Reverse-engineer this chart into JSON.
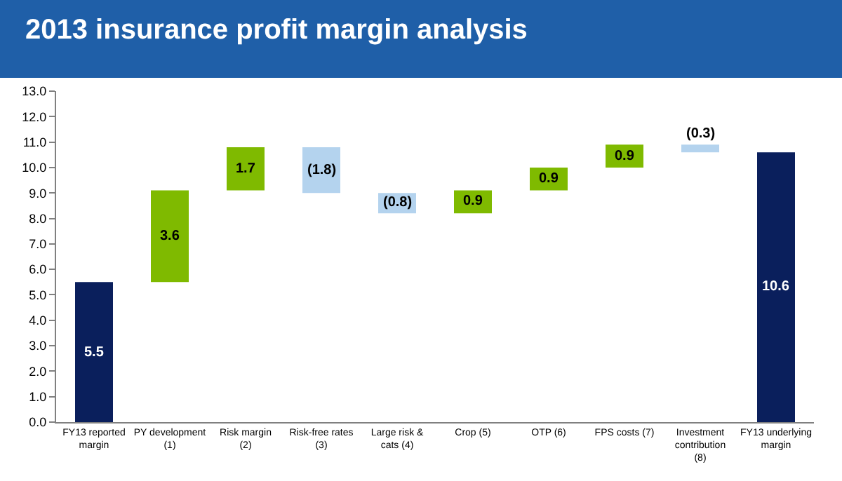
{
  "chart_data": {
    "type": "bar",
    "title": "2013 insurance profit margin analysis",
    "categories": [
      "FY13 reported margin",
      "PY development (1)",
      "Risk margin  (2)",
      "Risk-free rates (3)",
      "Large risk & cats (4)",
      "Crop (5)",
      "OTP (6)",
      "FPS costs (7)",
      "Investment contribution (8)",
      "FY13 underlying margin"
    ],
    "values": [
      5.5,
      3.6,
      1.7,
      -1.8,
      -0.8,
      0.9,
      0.9,
      0.9,
      -0.3,
      10.6
    ],
    "base": [
      0,
      5.5,
      9.1,
      10.8,
      9.0,
      8.2,
      9.1,
      10.0,
      10.9,
      0
    ],
    "colors": [
      "#0a1f5c",
      "#7fba00",
      "#7fba00",
      "#b4d3ee",
      "#b4d3ee",
      "#7fba00",
      "#7fba00",
      "#7fba00",
      "#b4d3ee",
      "#0a1f5c"
    ],
    "value_labels": [
      "5.5",
      "3.6",
      "1.7",
      "(1.8)",
      "(0.8)",
      "0.9",
      "0.9",
      "0.9",
      "(0.3)",
      "10.6"
    ],
    "ylim": [
      0,
      13
    ],
    "yticks": [
      {
        "value": 0,
        "label": "0.0"
      },
      {
        "value": 1,
        "label": "1.0"
      },
      {
        "value": 2,
        "label": "2.0"
      },
      {
        "value": 3,
        "label": "3.0"
      },
      {
        "value": 4,
        "label": "4.0"
      },
      {
        "value": 5,
        "label": "5.0"
      },
      {
        "value": 6,
        "label": "6.0"
      },
      {
        "value": 7,
        "label": "7.0"
      },
      {
        "value": 8,
        "label": "8.0"
      },
      {
        "value": 9,
        "label": "9.0"
      },
      {
        "value": 10,
        "label": "10.0"
      },
      {
        "value": 11,
        "label": "11.0"
      },
      {
        "value": 12,
        "label": "12.0"
      },
      {
        "value": 13,
        "label": "13.0"
      }
    ],
    "tick_labels": true
  }
}
